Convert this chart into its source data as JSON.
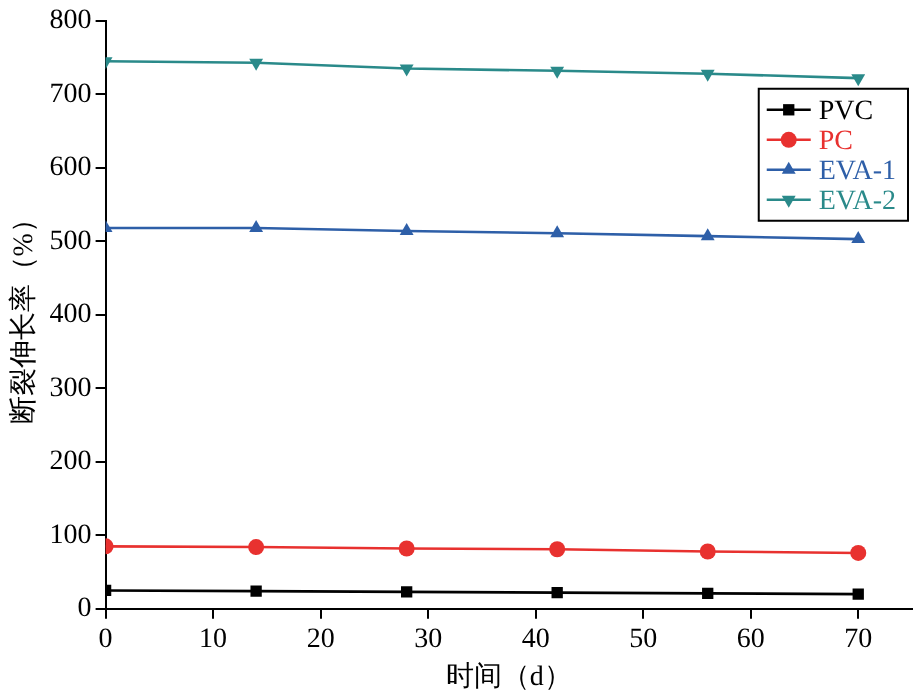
{
  "chart_data": {
    "type": "line",
    "xlabel": "时间（d）",
    "ylabel": "断裂伸长率（%）",
    "x": [
      0,
      14,
      28,
      42,
      56,
      70
    ],
    "series": [
      {
        "name": "PVC",
        "color": "#000000",
        "marker": "square",
        "values": [
          25,
          24,
          23,
          22,
          21,
          20
        ]
      },
      {
        "name": "PC",
        "color": "#e8312f",
        "marker": "circle",
        "values": [
          85,
          84,
          82,
          81,
          78,
          76
        ]
      },
      {
        "name": "EVA-1",
        "color": "#2e5fa8",
        "marker": "triangle",
        "values": [
          518,
          518,
          514,
          511,
          507,
          503
        ]
      },
      {
        "name": "EVA-2",
        "color": "#2a8a8a",
        "marker": "triangle-down",
        "values": [
          745,
          743,
          735,
          732,
          728,
          722
        ]
      }
    ],
    "xlim": [
      0,
      75
    ],
    "xticks": [
      0,
      10,
      20,
      30,
      40,
      50,
      60,
      70
    ],
    "ylim": [
      0,
      800
    ],
    "yticks": [
      0,
      100,
      200,
      300,
      400,
      500,
      600,
      700,
      800
    ],
    "grid": false,
    "legend": "top right"
  }
}
